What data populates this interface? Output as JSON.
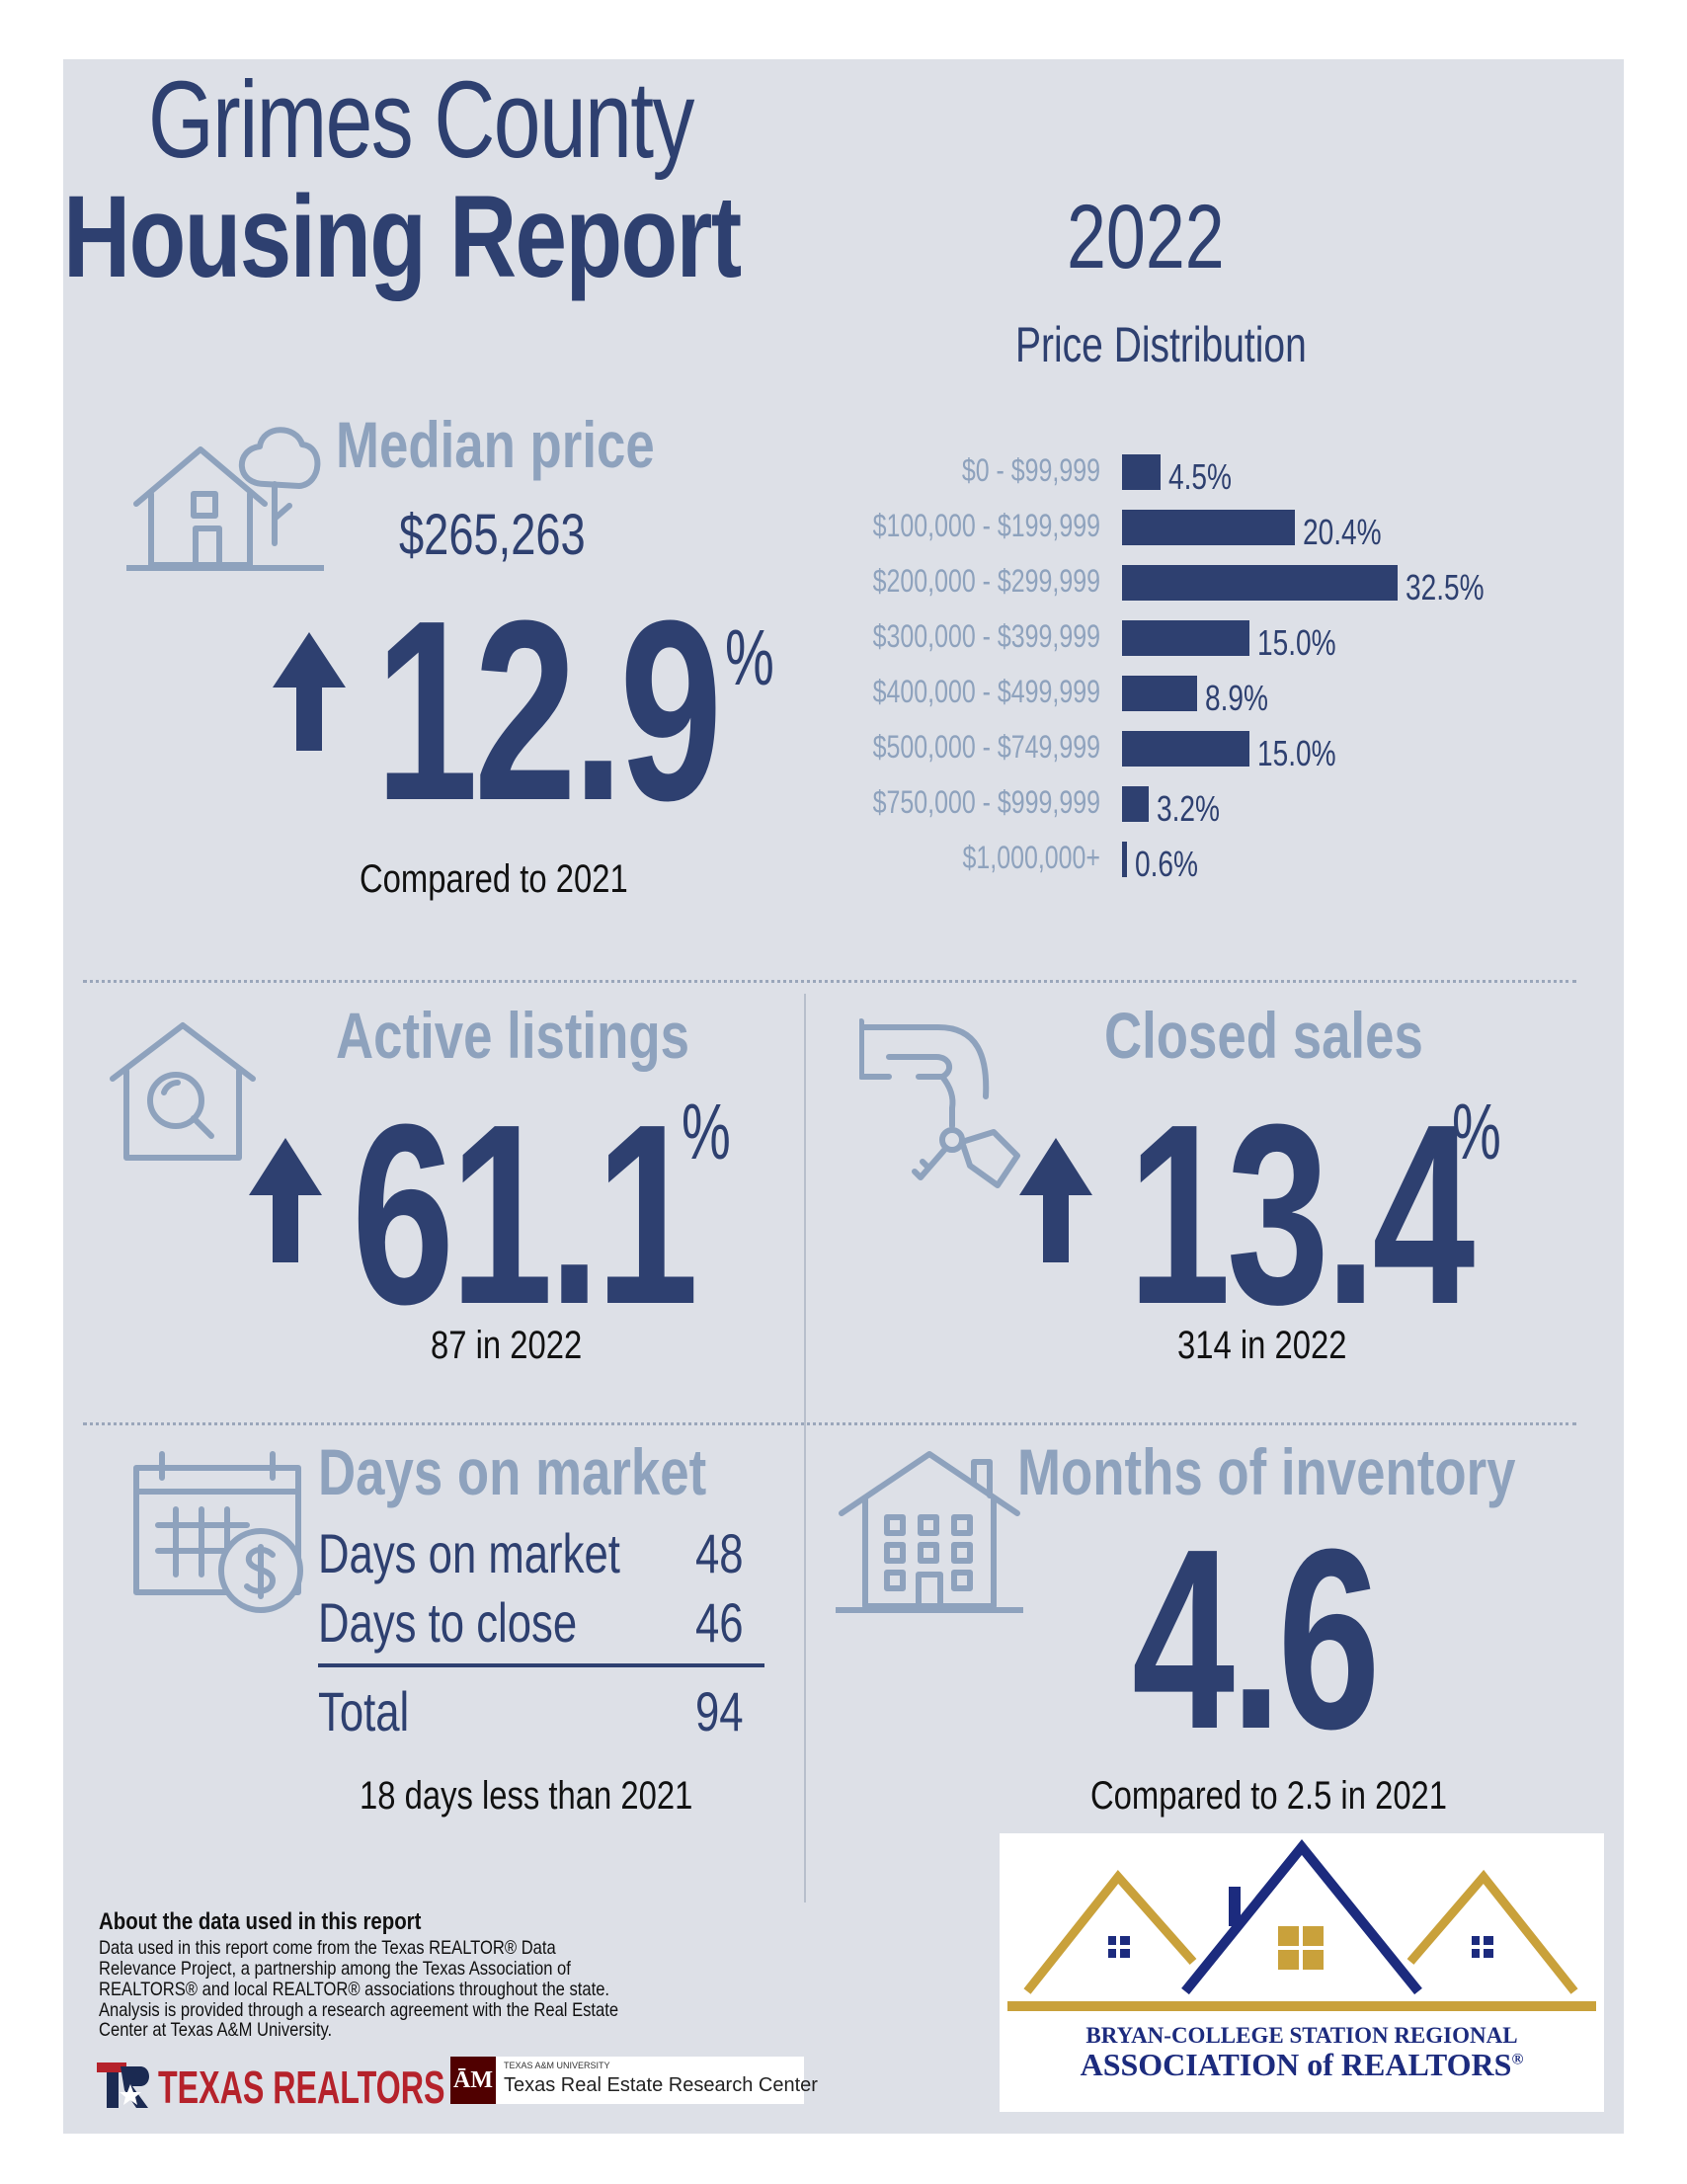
{
  "header": {
    "title_line1": "Grimes County",
    "title_line2": "Housing Report",
    "year": "2022"
  },
  "median_price": {
    "title": "Median price",
    "value": "$265,263",
    "change": "12.9",
    "unit": "%",
    "caption": "Compared to 2021"
  },
  "price_distribution": {
    "title": "Price Distribution"
  },
  "chart_data": {
    "type": "bar",
    "title": "Price Distribution",
    "orientation": "horizontal",
    "categories": [
      "$0 - $99,999",
      "$100,000 - $199,999",
      "$200,000 - $299,999",
      "$300,000 - $399,999",
      "$400,000 - $499,999",
      "$500,000 - $749,999",
      "$750,000 - $999,999",
      "$1,000,000+"
    ],
    "values": [
      4.5,
      20.4,
      32.5,
      15.0,
      8.9,
      15.0,
      3.2,
      0.6
    ],
    "value_labels": [
      "4.5%",
      "20.4%",
      "32.5%",
      "15.0%",
      "8.9%",
      "15.0%",
      "3.2%",
      "0.6%"
    ],
    "xlim": [
      0,
      35
    ],
    "grid": false,
    "color": "#2e4070"
  },
  "active_listings": {
    "title": "Active listings",
    "change": "61.1",
    "unit": "%",
    "caption": "87 in 2022"
  },
  "closed_sales": {
    "title": "Closed sales",
    "change": "13.4",
    "unit": "%",
    "caption": "314 in 2022"
  },
  "days_on_market": {
    "title": "Days on market",
    "rows": [
      {
        "label": "Days on market",
        "value": "48"
      },
      {
        "label": "Days to close",
        "value": "46"
      }
    ],
    "total_label": "Total",
    "total_value": "94",
    "caption": "18 days less than 2021"
  },
  "months_inventory": {
    "title": "Months of inventory",
    "value": "4.6",
    "caption": "Compared to 2.5 in 2021"
  },
  "about": {
    "title": "About the data used in this report",
    "body": "Data used in this report come from the Texas REALTOR® Data Relevance Project, a partnership among the Texas Association of REALTORS® and local REALTOR® associations throughout the state. Analysis is provided through a research agreement with the Real Estate Center at Texas A&M University."
  },
  "logos": {
    "texas_realtors": "TEXAS REALTORS",
    "tamu_small": "TEXAS A&M UNIVERSITY",
    "tamu_center": "Texas Real Estate Research Center",
    "bcs_line1": "BRYAN-COLLEGE STATION REGIONAL",
    "bcs_line2": "ASSOCIATION of REALTORS",
    "bcs_reg": "®"
  },
  "colors": {
    "navy": "#2e4070",
    "muted": "#8ea2bd",
    "background": "#dde0e7",
    "gold": "#c9a13b"
  }
}
